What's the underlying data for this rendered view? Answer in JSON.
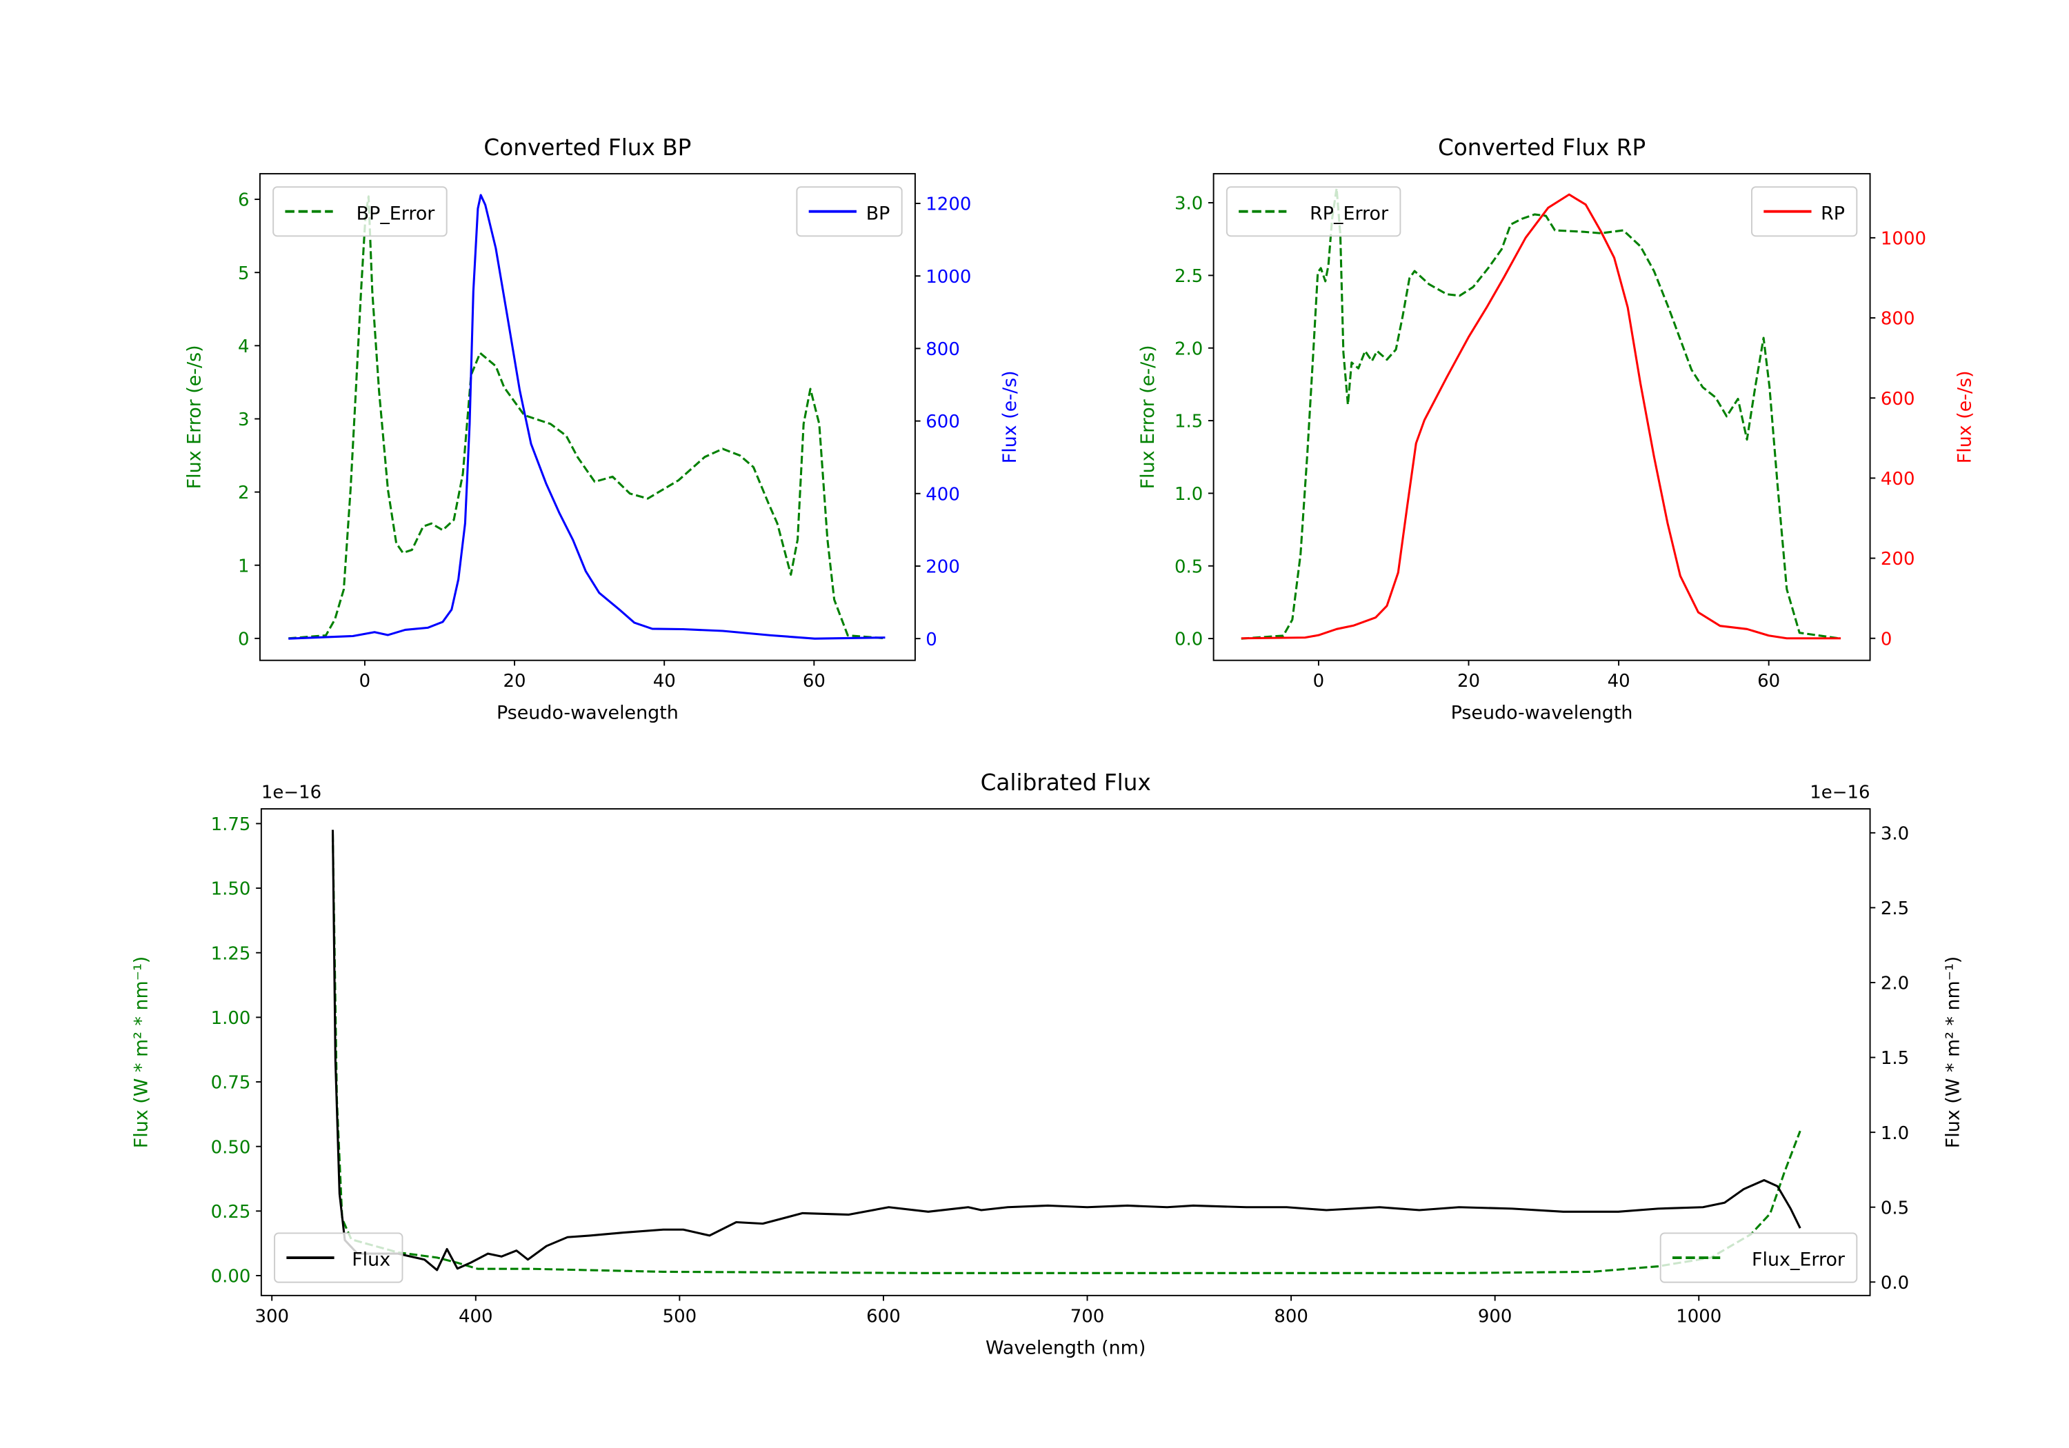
{
  "chart_data": [
    {
      "id": "bp",
      "type": "line",
      "title": "Converted Flux BP",
      "xlabel": "Pseudo-wavelength",
      "ylabel_left": "Flux Error (e-/s)",
      "ylabel_right": "Flux (e-/s)",
      "xlim": [
        -14,
        73.5
      ],
      "ylim_left": [
        -0.3,
        6.35
      ],
      "ylim_right": [
        -60,
        1282
      ],
      "xticks": [
        0,
        20,
        40,
        60
      ],
      "yticks_left": [
        0,
        1,
        2,
        3,
        4,
        5,
        6
      ],
      "yticks_right": [
        0,
        200,
        400,
        600,
        800,
        1000,
        1200
      ],
      "left_color": "#008000",
      "right_color": "#0000ff",
      "series": [
        {
          "name": "BP_Error",
          "axis": "left",
          "color": "#008000",
          "dashed": true,
          "legend": "top-left",
          "x": [
            -10.2,
            -5.2,
            -4,
            -2.8,
            -1.9,
            -1.2,
            -0.5,
            0.1,
            0.5,
            1,
            1.9,
            3.1,
            4.2,
            5.1,
            6.3,
            7.8,
            8.9,
            10.4,
            11.9,
            13.1,
            14.2,
            15.4,
            17.5,
            18.6,
            21.3,
            24.8,
            26.9,
            28.4,
            30.7,
            33.1,
            35.4,
            37.8,
            41.9,
            45.4,
            47.8,
            50.1,
            51.9,
            53.9,
            55.1,
            56.9,
            57.8,
            58.6,
            59.5,
            60.7,
            61.8,
            62.7,
            64.5,
            69.5
          ],
          "y": [
            0,
            0.04,
            0.26,
            0.67,
            2.03,
            3.38,
            4.74,
            5.78,
            6.04,
            4.74,
            3.38,
            2.03,
            1.3,
            1.17,
            1.21,
            1.53,
            1.57,
            1.48,
            1.62,
            2.25,
            3.6,
            3.9,
            3.72,
            3.43,
            3.05,
            2.93,
            2.77,
            2.48,
            2.14,
            2.21,
            1.98,
            1.91,
            2.16,
            2.48,
            2.59,
            2.5,
            2.34,
            1.85,
            1.57,
            0.87,
            1.35,
            2.93,
            3.41,
            2.93,
            1.35,
            0.53,
            0.04,
            0
          ]
        },
        {
          "name": "BP",
          "axis": "right",
          "color": "#0000ff",
          "dashed": false,
          "legend": "top-right",
          "x": [
            -10.2,
            -1.6,
            1.3,
            3.1,
            5.4,
            8.4,
            10.4,
            11.6,
            12.5,
            13.4,
            14,
            14.5,
            15.1,
            15.5,
            16.1,
            17.5,
            19,
            20.7,
            22.2,
            24.2,
            26,
            27.8,
            29.5,
            31.3,
            34,
            36,
            38.4,
            42.5,
            47.8,
            54.2,
            60.1,
            69.5
          ],
          "y": [
            0,
            7,
            18,
            10,
            24,
            30,
            46,
            80,
            163,
            318,
            592,
            958,
            1186,
            1223,
            1196,
            1077,
            894,
            684,
            537,
            428,
            346,
            272,
            186,
            126,
            80,
            44,
            27,
            26,
            21,
            9,
            0,
            3
          ]
        }
      ]
    },
    {
      "id": "rp",
      "type": "line",
      "title": "Converted Flux RP",
      "xlabel": "Pseudo-wavelength",
      "ylabel_left": "Flux Error (e-/s)",
      "ylabel_right": "Flux (e-/s)",
      "xlim": [
        -14,
        73.5
      ],
      "ylim_left": [
        -0.15,
        3.2
      ],
      "ylim_right": [
        -55,
        1160
      ],
      "xticks": [
        0,
        20,
        40,
        60
      ],
      "yticks_left": [
        0.0,
        0.5,
        1.0,
        1.5,
        2.0,
        2.5,
        3.0
      ],
      "yticks_left_labels": [
        "0.0",
        "0.5",
        "1.0",
        "1.5",
        "2.0",
        "2.5",
        "3.0"
      ],
      "yticks_right": [
        0,
        200,
        400,
        600,
        800,
        1000
      ],
      "left_color": "#008000",
      "right_color": "#ff0000",
      "series": [
        {
          "name": "RP_Error",
          "axis": "left",
          "color": "#008000",
          "dashed": true,
          "legend": "top-left",
          "x": [
            -10.3,
            -4.7,
            -3.5,
            -2.4,
            -1.5,
            -0.7,
            -0.1,
            0.3,
            0.9,
            1.3,
            1.8,
            2.4,
            2.9,
            3.3,
            3.9,
            4.4,
            5.3,
            6.2,
            7.1,
            7.8,
            9.1,
            10.3,
            11.2,
            12.1,
            12.8,
            14.7,
            17.1,
            18.8,
            20.6,
            22.6,
            24.4,
            25.6,
            27.1,
            28.8,
            30.3,
            31.5,
            35.3,
            37.6,
            40.6,
            42.9,
            44.7,
            46.7,
            49.7,
            51.2,
            52.9,
            54.4,
            55.9,
            57.1,
            58.2,
            59.3,
            60.1,
            61.2,
            62.4,
            64.1,
            69.6
          ],
          "y": [
            0,
            0.02,
            0.13,
            0.58,
            1.27,
            1.97,
            2.52,
            2.55,
            2.46,
            2.57,
            2.89,
            3.1,
            2.78,
            1.97,
            1.61,
            1.9,
            1.86,
            1.98,
            1.91,
            1.98,
            1.92,
            1.99,
            2.22,
            2.48,
            2.53,
            2.44,
            2.37,
            2.36,
            2.42,
            2.55,
            2.68,
            2.85,
            2.89,
            2.92,
            2.91,
            2.81,
            2.8,
            2.79,
            2.81,
            2.7,
            2.53,
            2.27,
            1.85,
            1.73,
            1.66,
            1.53,
            1.65,
            1.37,
            1.73,
            2.07,
            1.73,
            1.04,
            0.34,
            0.04,
            0
          ]
        },
        {
          "name": "RP",
          "axis": "right",
          "color": "#ff0000",
          "dashed": false,
          "legend": "top-right",
          "x": [
            -10.3,
            -1.8,
            0,
            2.4,
            4.7,
            7.6,
            9.1,
            10.6,
            11.8,
            13,
            14.1,
            17.1,
            20,
            22.4,
            24.7,
            27.6,
            30.6,
            33.4,
            35.6,
            37.6,
            39.4,
            41.2,
            42.9,
            44.7,
            46.5,
            48.2,
            50.6,
            53.5,
            57.1,
            60,
            62.4,
            69.6
          ],
          "y": [
            0,
            2,
            8,
            23,
            32,
            52,
            81,
            164,
            329,
            487,
            545,
            652,
            752,
            826,
            901,
            1000,
            1075,
            1108,
            1083,
            1017,
            950,
            826,
            636,
            454,
            288,
            156,
            65,
            31,
            23,
            7,
            0,
            0
          ]
        }
      ]
    },
    {
      "id": "cal",
      "type": "line",
      "title": "Calibrated Flux",
      "xlabel": "Wavelength (nm)",
      "ylabel_left": "Flux (W * m² * nm⁻¹)",
      "ylabel_right": "Flux (W * m² * nm⁻¹)",
      "offset_left": "1e−16",
      "offset_right": "1e−16",
      "xlim": [
        294.8,
        1084
      ],
      "ylim_left": [
        -0.077,
        1.807
      ],
      "ylim_right": [
        -0.09,
        3.16
      ],
      "xticks": [
        300,
        400,
        500,
        600,
        700,
        800,
        900,
        1000
      ],
      "yticks_left": [
        0,
        0.25,
        0.5,
        0.75,
        1.0,
        1.25,
        1.5,
        1.75
      ],
      "yticks_left_labels": [
        "0.00",
        "0.25",
        "0.50",
        "0.75",
        "1.00",
        "1.25",
        "1.50",
        "1.75"
      ],
      "yticks_right": [
        0,
        0.5,
        1.0,
        1.5,
        2.0,
        2.5,
        3.0
      ],
      "yticks_right_labels": [
        "0.0",
        "0.5",
        "1.0",
        "1.5",
        "2.0",
        "2.5",
        "3.0"
      ],
      "left_color": "#008000",
      "right_color": "#000000",
      "series": [
        {
          "name": "Flux_Error",
          "axis": "left",
          "color": "#008000",
          "dashed": true,
          "legend": "bottom-right",
          "x": [
            329.9,
            331.9,
            334.5,
            339,
            361.8,
            381,
            391,
            401,
            427,
            492,
            622,
            752,
            882,
            947.5,
            980,
            1006,
            1025.6,
            1035,
            1042,
            1049.7
          ],
          "y": [
            1.71,
            0.68,
            0.22,
            0.14,
            0.09,
            0.07,
            0.05,
            0.026,
            0.026,
            0.015,
            0.01,
            0.01,
            0.01,
            0.015,
            0.036,
            0.07,
            0.16,
            0.24,
            0.4,
            0.56
          ]
        },
        {
          "name": "Flux",
          "axis": "right",
          "color": "#000000",
          "dashed": false,
          "legend": "bottom-left",
          "x": [
            329.9,
            331.2,
            333.2,
            335.8,
            342,
            361.8,
            374.8,
            381,
            385.9,
            391,
            397.6,
            406,
            412.6,
            420,
            425.6,
            434.7,
            445,
            456,
            472,
            492,
            501.8,
            514.7,
            527.8,
            540.8,
            560.3,
            583,
            602.6,
            622,
            641.6,
            648,
            661,
            680.7,
            700,
            719.7,
            739.2,
            752,
            778,
            797.8,
            817.3,
            843.4,
            862.9,
            882.4,
            908.4,
            933.5,
            960.5,
            980,
            1002,
            1012.6,
            1022,
            1032,
            1038.6,
            1045,
            1049.7
          ],
          "y": [
            3.02,
            1.48,
            0.59,
            0.28,
            0.19,
            0.19,
            0.15,
            0.08,
            0.22,
            0.09,
            0.13,
            0.19,
            0.17,
            0.21,
            0.15,
            0.24,
            0.3,
            0.31,
            0.33,
            0.35,
            0.35,
            0.31,
            0.4,
            0.39,
            0.46,
            0.45,
            0.5,
            0.47,
            0.5,
            0.48,
            0.5,
            0.51,
            0.5,
            0.51,
            0.5,
            0.51,
            0.5,
            0.5,
            0.48,
            0.5,
            0.48,
            0.5,
            0.49,
            0.47,
            0.47,
            0.49,
            0.5,
            0.53,
            0.62,
            0.68,
            0.64,
            0.49,
            0.36
          ]
        }
      ]
    }
  ]
}
